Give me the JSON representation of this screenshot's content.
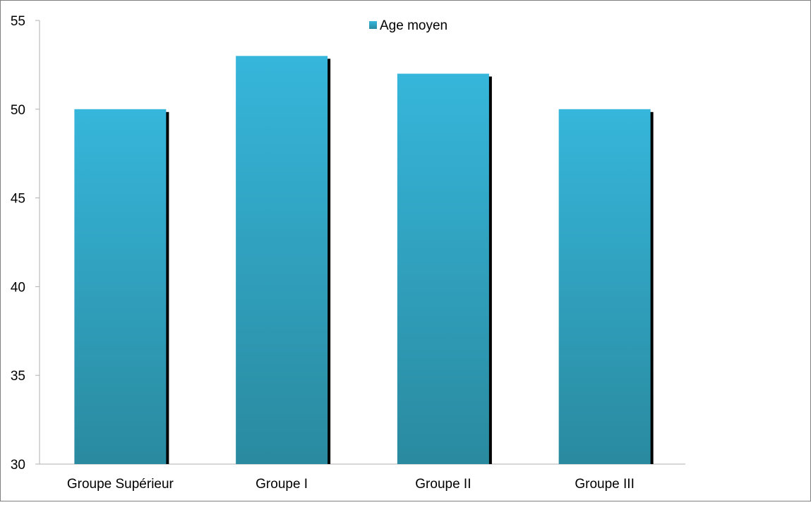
{
  "chart_data": {
    "type": "bar",
    "title": "",
    "xlabel": "",
    "ylabel": "",
    "categories": [
      "Groupe Supérieur",
      "Groupe I",
      "Groupe II",
      "Groupe III"
    ],
    "series": [
      {
        "name": "Age moyen",
        "values": [
          50,
          53,
          52,
          50
        ]
      }
    ],
    "ylim": [
      30,
      55
    ],
    "yticks": [
      30,
      35,
      40,
      45,
      50,
      55
    ],
    "legend": {
      "position": "top-center"
    },
    "grid": false,
    "colors": {
      "bar_top": "#36B6DB",
      "bar_bottom": "#2A8A9F",
      "bar_shadow": "#000000",
      "axis": "#B0B0B0",
      "frame": "#7F7F7F"
    }
  }
}
